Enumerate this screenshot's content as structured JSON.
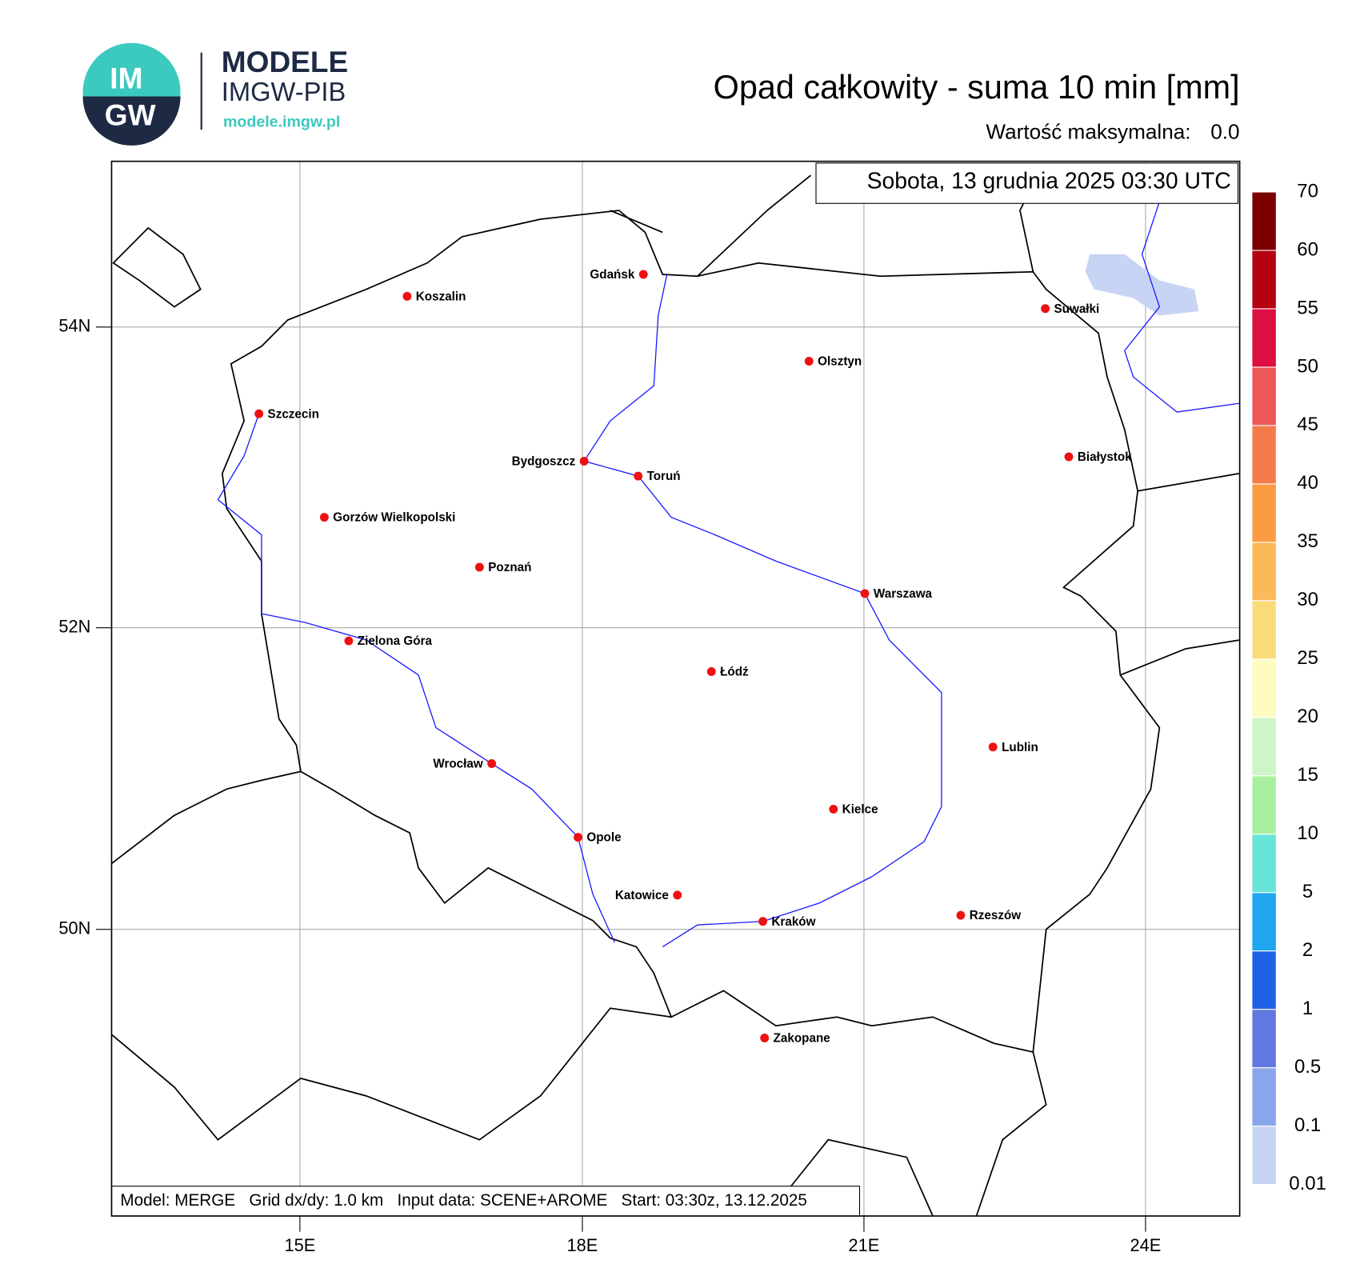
{
  "header": {
    "logo_top": "IM",
    "logo_bottom": "GW",
    "brand": "MODELE",
    "org": "IMGW-PIB",
    "url": "modele.imgw.pl",
    "title": "Opad całkowity - suma 10 min [mm]",
    "max_label": "Wartość maksymalna:",
    "max_value": "0.0"
  },
  "map": {
    "datetime": "Sobota, 13 grudnia 2025 03:30 UTC",
    "lat_labels": [
      "54N",
      "52N",
      "50N"
    ],
    "lon_labels": [
      "15E",
      "18E",
      "21E",
      "24E"
    ],
    "cities": [
      "Gdańsk",
      "Koszalin",
      "Szczecin",
      "Suwałki",
      "Olsztyn",
      "Białystok",
      "Bydgoszcz",
      "Toruń",
      "Gorzów Wielkopolski",
      "Poznań",
      "Warszawa",
      "Zielona Góra",
      "Łódź",
      "Lublin",
      "Wrocław",
      "Kielce",
      "Opole",
      "Katowice",
      "Rzeszów",
      "Kraków",
      "Zakopane"
    ],
    "footer": "Model: MERGE   Grid dx/dy: 1.0 km   Input data: SCENE+AROME   Start: 03:30z, 13.12.2025"
  },
  "colorbar": {
    "levels": [
      0.01,
      0.1,
      0.5,
      1,
      2,
      5,
      10,
      15,
      20,
      25,
      30,
      35,
      40,
      45,
      50,
      55,
      60,
      70
    ],
    "colors": [
      "#c8d4f4",
      "#8aa6ec",
      "#6078e0",
      "#1f62e6",
      "#1fa6ee",
      "#66e4d8",
      "#a8f0a0",
      "#cdf5c8",
      "#fdfbc0",
      "#f9dc78",
      "#fbb95a",
      "#fb9c45",
      "#f57a4b",
      "#ec5757",
      "#dc0e42",
      "#b40010",
      "#7c0000"
    ]
  }
}
